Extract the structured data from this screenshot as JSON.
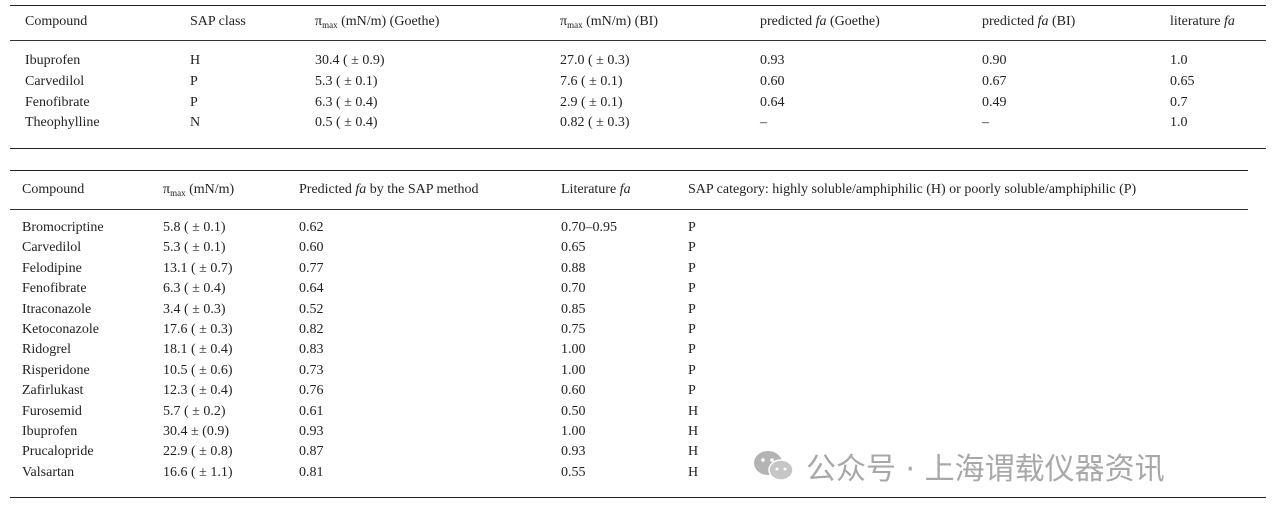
{
  "table1": {
    "header": [
      [
        {
          "text": "Compound",
          "style": "normal"
        }
      ],
      [
        {
          "text": "SAP class",
          "style": "normal"
        }
      ],
      [
        {
          "text": "π",
          "style": "normal"
        },
        {
          "text": "max",
          "style": "sub"
        },
        {
          "text": " (mN/m) (Goethe)",
          "style": "normal"
        }
      ],
      [
        {
          "text": "π",
          "style": "normal"
        },
        {
          "text": "max",
          "style": "sub"
        },
        {
          "text": " (mN/m) (BI)",
          "style": "normal"
        }
      ],
      [
        {
          "text": "predicted ",
          "style": "normal"
        },
        {
          "text": "fa",
          "style": "italic"
        },
        {
          "text": " (Goethe)",
          "style": "normal"
        }
      ],
      [
        {
          "text": "predicted ",
          "style": "normal"
        },
        {
          "text": "fa",
          "style": "italic"
        },
        {
          "text": " (BI)",
          "style": "normal"
        }
      ],
      [
        {
          "text": "literature ",
          "style": "normal"
        },
        {
          "text": "fa",
          "style": "italic"
        }
      ]
    ],
    "rows": [
      [
        "Ibuprofen",
        "H",
        "30.4 ( ± 0.9)",
        "27.0 ( ± 0.3)",
        "0.93",
        "0.90",
        "1.0"
      ],
      [
        "Carvedilol",
        "P",
        "5.3 ( ± 0.1)",
        "7.6 ( ± 0.1)",
        "0.60",
        "0.67",
        "0.65"
      ],
      [
        "Fenofibrate",
        "P",
        "6.3 ( ± 0.4)",
        "2.9 ( ± 0.1)",
        "0.64",
        "0.49",
        "0.7"
      ],
      [
        "Theophylline",
        "N",
        "0.5 ( ± 0.4)",
        "0.82 ( ± 0.3)",
        "–",
        "–",
        "1.0"
      ]
    ]
  },
  "table2": {
    "header": [
      [
        {
          "text": "Compound",
          "style": "normal"
        }
      ],
      [
        {
          "text": "π",
          "style": "normal"
        },
        {
          "text": "max",
          "style": "sub"
        },
        {
          "text": " (mN/m)",
          "style": "normal"
        }
      ],
      [
        {
          "text": "Predicted ",
          "style": "normal"
        },
        {
          "text": "fa",
          "style": "italic"
        },
        {
          "text": " by the SAP method",
          "style": "normal"
        }
      ],
      [
        {
          "text": "Literature ",
          "style": "normal"
        },
        {
          "text": "fa",
          "style": "italic"
        }
      ],
      [
        {
          "text": "SAP category: highly soluble/amphiphilic (H) or poorly soluble/amphiphilic (P)",
          "style": "normal"
        }
      ]
    ],
    "rows": [
      [
        "Bromocriptine",
        "5.8 ( ± 0.1)",
        "0.62",
        "0.70–0.95",
        "P"
      ],
      [
        "Carvedilol",
        "5.3 ( ± 0.1)",
        "0.60",
        "0.65",
        "P"
      ],
      [
        "Felodipine",
        "13.1 ( ± 0.7)",
        "0.77",
        "0.88",
        "P"
      ],
      [
        "Fenofibrate",
        "6.3 ( ± 0.4)",
        "0.64",
        "0.70",
        "P"
      ],
      [
        "Itraconazole",
        "3.4 ( ± 0.3)",
        "0.52",
        "0.85",
        "P"
      ],
      [
        "Ketoconazole",
        "17.6 ( ± 0.3)",
        "0.82",
        "0.75",
        "P"
      ],
      [
        "Ridogrel",
        "18.1 ( ± 0.4)",
        "0.83",
        "1.00",
        "P"
      ],
      [
        "Risperidone",
        "10.5 ( ± 0.6)",
        "0.73",
        "1.00",
        "P"
      ],
      [
        "Zafirlukast",
        "12.3 ( ± 0.4)",
        "0.76",
        "0.60",
        "P"
      ],
      [
        "Furosemid",
        "5.7 ( ± 0.2)",
        "0.61",
        "0.50",
        "H"
      ],
      [
        "Ibuprofen",
        "30.4 ± (0.9)",
        "0.93",
        "1.00",
        "H"
      ],
      [
        "Prucalopride",
        "22.9 ( ± 0.8)",
        "0.87",
        "0.93",
        "H"
      ],
      [
        "Valsartan",
        "16.6 ( ± 1.1)",
        "0.81",
        "0.55",
        "H"
      ]
    ]
  },
  "watermark": "公众号 · 上海谓载仪器资讯"
}
